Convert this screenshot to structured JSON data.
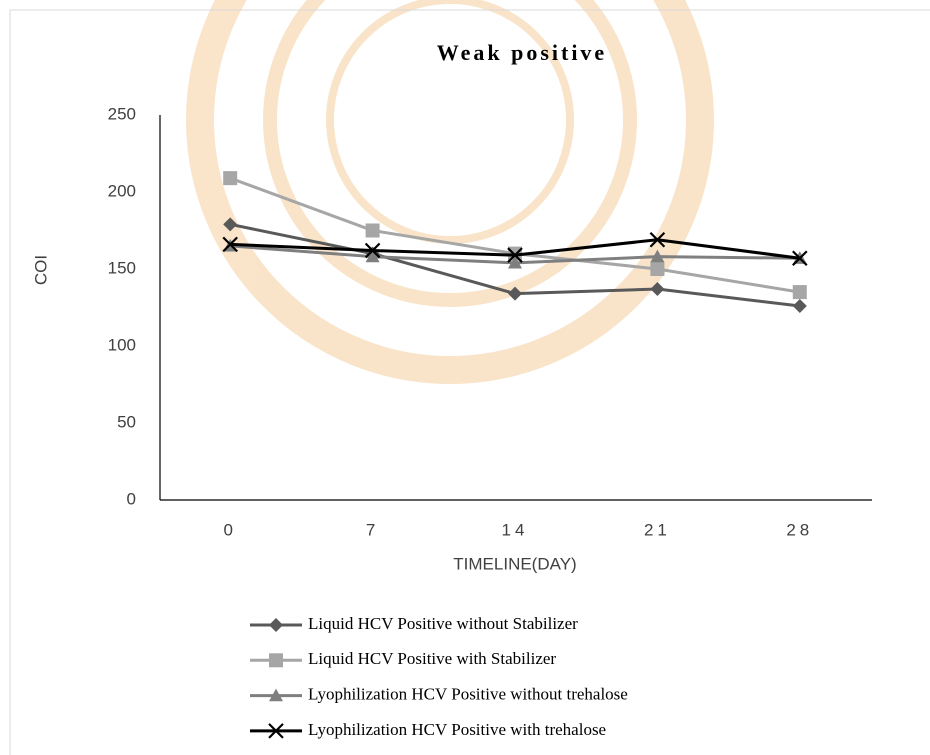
{
  "chart_data": {
    "type": "line",
    "title": "Weak positive",
    "x_label": "TIMELINE(DAY)",
    "y_label": "COI",
    "categories": [
      "0",
      "7",
      "14",
      "21",
      "28"
    ],
    "ylim": [
      0,
      250
    ],
    "yticks": [
      0,
      50,
      100,
      150,
      200,
      250
    ],
    "grid": false,
    "series": [
      {
        "name": "Liquid HCV Positive without Stabilizer",
        "color": "#595959",
        "marker": "diamond",
        "values": [
          179,
          160,
          134,
          137,
          126
        ]
      },
      {
        "name": "Liquid HCV Positive with Stabilizer",
        "color": "#a6a6a6",
        "marker": "square",
        "values": [
          209,
          175,
          160,
          150,
          135
        ]
      },
      {
        "name": "Lyophilization HCV Positive without  trehalose",
        "color": "#7f7f7f",
        "marker": "triangle",
        "values": [
          165,
          158,
          154,
          158,
          157
        ]
      },
      {
        "name": "Lyophilization HCV Positive with trehalose",
        "color": "#000000",
        "marker": "x",
        "values": [
          166,
          162,
          159,
          169,
          157
        ]
      }
    ]
  }
}
